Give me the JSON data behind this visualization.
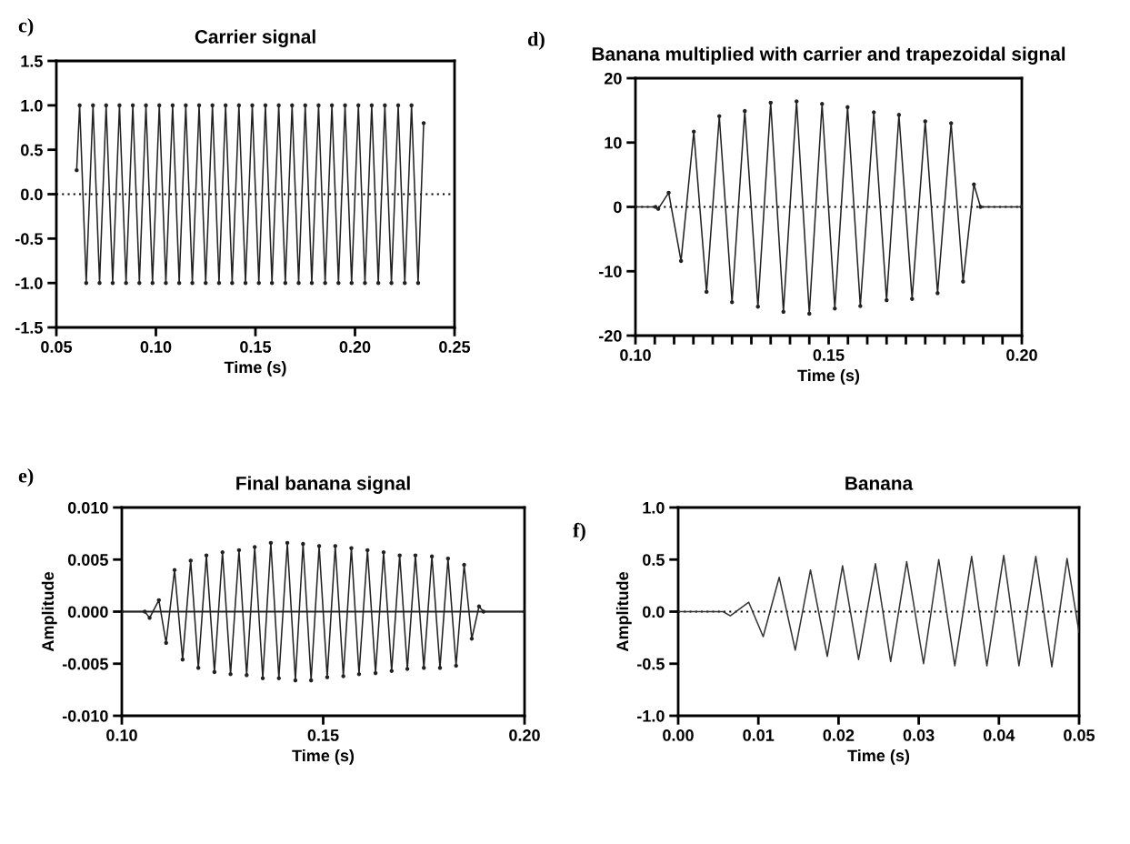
{
  "chart_data": [
    {
      "type": "line",
      "title": "Carrier signal",
      "xlabel": "Time (s)",
      "annotations": [
        "c)"
      ],
      "marker": "circle",
      "grid": false,
      "legend": false,
      "xlim": [
        0.05,
        0.25
      ],
      "ylim": [
        -1.5,
        1.5
      ],
      "xticks": [
        {
          "value": 0.05,
          "label": "0.05"
        },
        {
          "value": 0.1,
          "label": "0.10"
        },
        {
          "value": 0.15,
          "label": "0.15"
        },
        {
          "value": 0.2,
          "label": "0.20"
        },
        {
          "value": 0.25,
          "label": "0.25"
        }
      ],
      "yticks": [
        {
          "value": -1.5,
          "label": "-1.5"
        },
        {
          "value": -1.0,
          "label": "-1.0"
        },
        {
          "value": -0.5,
          "label": "-0.5"
        },
        {
          "value": 0,
          "label": "0.0"
        },
        {
          "value": 0.5,
          "label": "0.5"
        },
        {
          "value": 1.0,
          "label": "1.0"
        },
        {
          "value": 1.5,
          "label": "1.5"
        }
      ],
      "ref_lines": [
        {
          "axis": "y",
          "value": 0,
          "line_style": "dotted",
          "color": "#000000"
        }
      ],
      "series": [
        {
          "color": "#222222",
          "x": [
            0.0602,
            0.0617,
            0.065,
            0.0684,
            0.0717,
            0.075,
            0.0783,
            0.0817,
            0.085,
            0.0884,
            0.0917,
            0.095,
            0.0983,
            0.1017,
            0.105,
            0.1084,
            0.1117,
            0.115,
            0.1183,
            0.1217,
            0.125,
            0.1284,
            0.1317,
            0.135,
            0.1383,
            0.1417,
            0.145,
            0.1484,
            0.1517,
            0.155,
            0.1583,
            0.1617,
            0.165,
            0.1684,
            0.1717,
            0.175,
            0.1783,
            0.1817,
            0.185,
            0.1884,
            0.1917,
            0.195,
            0.1983,
            0.2017,
            0.205,
            0.2084,
            0.2117,
            0.215,
            0.2183,
            0.2217,
            0.225,
            0.2284,
            0.2317,
            0.2345
          ],
          "values": [
            0.27,
            1.0,
            -1.0,
            1.0,
            -1.0,
            1.0,
            -1.0,
            1.0,
            -1.0,
            1.0,
            -1.0,
            1.0,
            -1.0,
            1.0,
            -1.0,
            1.0,
            -1.0,
            1.0,
            -1.0,
            1.0,
            -1.0,
            1.0,
            -1.0,
            1.0,
            -1.0,
            1.0,
            -1.0,
            1.0,
            -1.0,
            1.0,
            -1.0,
            1.0,
            -1.0,
            1.0,
            -1.0,
            1.0,
            -1.0,
            1.0,
            -1.0,
            1.0,
            -1.0,
            1.0,
            -1.0,
            1.0,
            -1.0,
            1.0,
            -1.0,
            1.0,
            -1.0,
            1.0,
            -1.0,
            1.0,
            -1.0,
            0.8
          ]
        }
      ]
    },
    {
      "type": "line",
      "title": "Banana multiplied with carrier and trapezoidal signal",
      "xlabel": "Time (s)",
      "annotations": [
        "d)"
      ],
      "marker": "circle",
      "grid": false,
      "legend": false,
      "xlim": [
        0.1,
        0.2
      ],
      "ylim": [
        -20,
        20
      ],
      "xticks": [
        {
          "value": 0.1,
          "label": "0.10"
        },
        {
          "value": 0.105,
          "label": null
        },
        {
          "value": 0.11,
          "label": null
        },
        {
          "value": 0.115,
          "label": null
        },
        {
          "value": 0.12,
          "label": null
        },
        {
          "value": 0.125,
          "label": null
        },
        {
          "value": 0.13,
          "label": null
        },
        {
          "value": 0.135,
          "label": null
        },
        {
          "value": 0.14,
          "label": null
        },
        {
          "value": 0.145,
          "label": null
        },
        {
          "value": 0.15,
          "label": "0.15"
        },
        {
          "value": 0.155,
          "label": null
        },
        {
          "value": 0.16,
          "label": null
        },
        {
          "value": 0.165,
          "label": null
        },
        {
          "value": 0.17,
          "label": null
        },
        {
          "value": 0.175,
          "label": null
        },
        {
          "value": 0.18,
          "label": null
        },
        {
          "value": 0.185,
          "label": null
        },
        {
          "value": 0.19,
          "label": null
        },
        {
          "value": 0.195,
          "label": null
        },
        {
          "value": 0.2,
          "label": "0.20"
        }
      ],
      "yticks": [
        -20,
        -10,
        0,
        10,
        20
      ],
      "ref_lines": [
        {
          "axis": "y",
          "value": 0,
          "line_style": "dotted",
          "color": "#000000"
        }
      ],
      "series": [
        {
          "color": "#222222",
          "x": [
            0.1,
            0.1052,
            0.1059,
            0.1086,
            0.1118,
            0.1151,
            0.1184,
            0.1217,
            0.125,
            0.1283,
            0.1317,
            0.135,
            0.1383,
            0.1417,
            0.145,
            0.1483,
            0.1516,
            0.1549,
            0.1582,
            0.1617,
            0.165,
            0.1682,
            0.1716,
            0.175,
            0.1782,
            0.1817,
            0.1848,
            0.1876,
            0.1893,
            0.2
          ],
          "values": [
            0,
            0,
            -0.3,
            2.2,
            -8.4,
            11.7,
            -13.2,
            14.1,
            -14.8,
            14.9,
            -15.5,
            16.2,
            -16.3,
            16.4,
            -16.6,
            16.0,
            -15.8,
            15.5,
            -15.4,
            14.7,
            -14.5,
            14.3,
            -14.3,
            13.3,
            -13.4,
            13.0,
            -11.6,
            3.5,
            0,
            0
          ]
        }
      ]
    },
    {
      "type": "line",
      "title": "Final banana signal",
      "xlabel": "Time (s)",
      "ylabel": "Amplitude",
      "annotations": [
        "e)"
      ],
      "marker": "circle",
      "grid": false,
      "legend": false,
      "xlim": [
        0.1,
        0.2
      ],
      "ylim": [
        -0.01,
        0.01
      ],
      "xticks": [
        {
          "value": 0.1,
          "label": "0.10"
        },
        {
          "value": 0.15,
          "label": "0.15"
        },
        {
          "value": 0.2,
          "label": "0.20"
        }
      ],
      "yticks": [
        {
          "value": -0.01,
          "label": "-0.010"
        },
        {
          "value": -0.005,
          "label": "-0.005"
        },
        {
          "value": 0,
          "label": "0.000"
        },
        {
          "value": 0.005,
          "label": "0.005"
        },
        {
          "value": 0.01,
          "label": "0.010"
        }
      ],
      "ref_lines": [
        {
          "axis": "y",
          "value": 0,
          "line_style": "solid",
          "color": "#222222"
        }
      ],
      "series": [
        {
          "color": "#222222",
          "x": [
            0.1,
            0.1057,
            0.1069,
            0.1092,
            0.111,
            0.1131,
            0.1151,
            0.1171,
            0.119,
            0.121,
            0.123,
            0.125,
            0.127,
            0.1291,
            0.131,
            0.133,
            0.135,
            0.137,
            0.139,
            0.1411,
            0.1431,
            0.145,
            0.147,
            0.149,
            0.151,
            0.153,
            0.155,
            0.157,
            0.1589,
            0.161,
            0.163,
            0.165,
            0.167,
            0.169,
            0.1709,
            0.1729,
            0.175,
            0.177,
            0.179,
            0.181,
            0.183,
            0.185,
            0.1869,
            0.1887,
            0.1898,
            0.2
          ],
          "values": [
            0,
            0,
            -0.0006,
            0.0011,
            -0.003,
            0.004,
            -0.0046,
            0.0049,
            -0.0054,
            0.0054,
            -0.0058,
            0.0057,
            -0.006,
            0.0059,
            -0.0061,
            0.0062,
            -0.0064,
            0.0066,
            -0.0064,
            0.0066,
            -0.0066,
            0.0065,
            -0.0066,
            0.0063,
            -0.0063,
            0.0063,
            -0.0062,
            0.0061,
            -0.006,
            0.0059,
            -0.0059,
            0.0057,
            -0.0057,
            0.0054,
            -0.0055,
            0.0054,
            -0.0054,
            0.0053,
            -0.0054,
            0.0051,
            -0.0052,
            0.0045,
            -0.0026,
            0.0005,
            0,
            0
          ]
        }
      ]
    },
    {
      "type": "line",
      "title": "Banana",
      "xlabel": "Time (s)",
      "ylabel": "Amplitude",
      "annotations": [
        "f)"
      ],
      "grid": false,
      "legend": false,
      "xlim": [
        0,
        0.05
      ],
      "ylim": [
        -1.0,
        1.0
      ],
      "xticks": [
        {
          "value": 0,
          "label": "0.00"
        },
        {
          "value": 0.01,
          "label": "0.01"
        },
        {
          "value": 0.02,
          "label": "0.02"
        },
        {
          "value": 0.03,
          "label": "0.03"
        },
        {
          "value": 0.04,
          "label": "0.04"
        },
        {
          "value": 0.05,
          "label": "0.05"
        }
      ],
      "yticks": [
        {
          "value": -1.0,
          "label": "-1.0"
        },
        {
          "value": -0.5,
          "label": "-0.5"
        },
        {
          "value": 0,
          "label": "0.0"
        },
        {
          "value": 0.5,
          "label": "0.5"
        },
        {
          "value": 1.0,
          "label": "1.0"
        }
      ],
      "ref_lines": [
        {
          "axis": "y",
          "value": 0,
          "line_style": "dotted",
          "color": "#000000"
        }
      ],
      "series": [
        {
          "color": "#333333",
          "x": [
            0,
            0.0056,
            0.0065,
            0.0088,
            0.0106,
            0.0126,
            0.0146,
            0.0165,
            0.0186,
            0.0205,
            0.0225,
            0.0246,
            0.0265,
            0.0285,
            0.0306,
            0.0325,
            0.0345,
            0.0366,
            0.0385,
            0.0406,
            0.0425,
            0.0446,
            0.0466,
            0.0485,
            0.05
          ],
          "values": [
            0,
            0,
            -0.04,
            0.09,
            -0.24,
            0.33,
            -0.37,
            0.4,
            -0.43,
            0.44,
            -0.46,
            0.46,
            -0.48,
            0.48,
            -0.5,
            0.5,
            -0.52,
            0.53,
            -0.52,
            0.54,
            -0.52,
            0.53,
            -0.53,
            0.51,
            -0.2
          ]
        }
      ]
    }
  ]
}
